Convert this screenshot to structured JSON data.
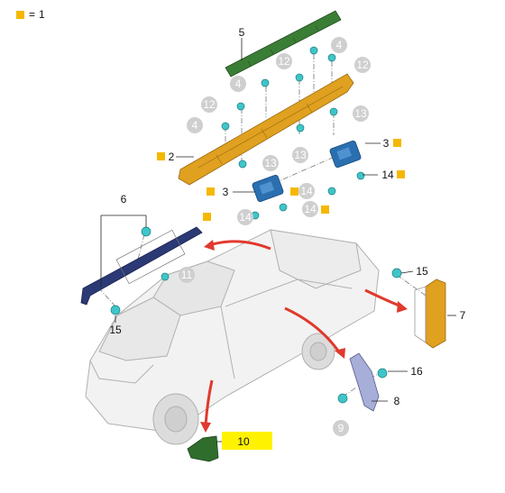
{
  "legend": {
    "marker_color": "#f5b800",
    "symbol": "=",
    "value": "1"
  },
  "callouts": {
    "c5": "5",
    "c4a": "4",
    "c4b": "4",
    "c4c": "4",
    "c12a": "12",
    "c12b": "12",
    "c12c": "12",
    "c13a": "13",
    "c13b": "13",
    "c13c": "13",
    "c2": "2",
    "c3a": "3",
    "c3b": "3",
    "c14a": "14",
    "c14b": "14",
    "c14c": "14",
    "c6": "6",
    "c11": "11",
    "c15a": "15",
    "c15b": "15",
    "c7": "7",
    "c16": "16",
    "c8": "8",
    "c9": "9",
    "c10": "10"
  },
  "colors": {
    "orange_part": "#e0a020",
    "green_part": "#3a7d35",
    "blue_part": "#2a6fb0",
    "navy_part": "#2b3a75",
    "clip_cyan": "#3fc5c9",
    "red_arrow": "#e0392d",
    "highlight": "#fff200",
    "grey_circle": "#cfcfcf"
  }
}
